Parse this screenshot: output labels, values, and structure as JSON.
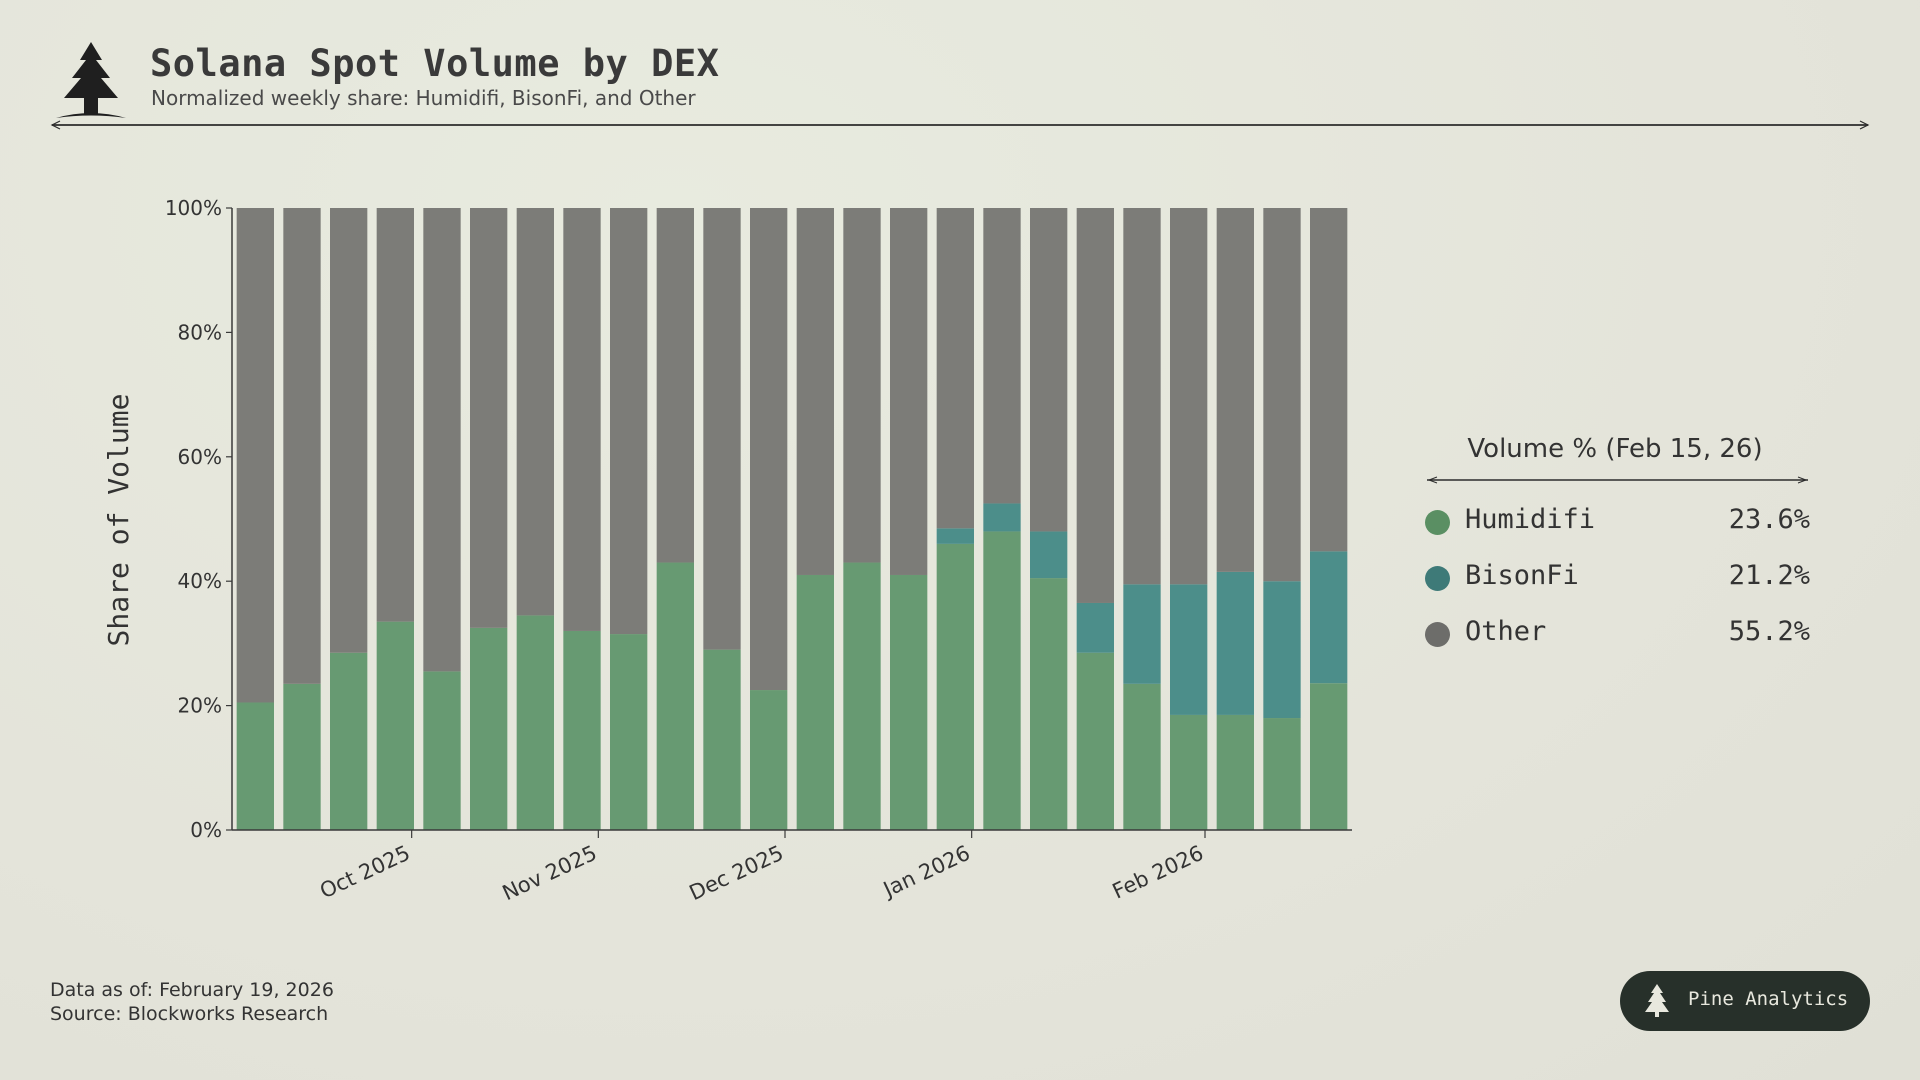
{
  "header": {
    "title": "Solana Spot Volume by DEX",
    "subtitle": "Normalized weekly share: Humidifi, BisonFi, and Other"
  },
  "colors": {
    "humidifi": "#679a72",
    "bisonfi": "#4c8e8a",
    "other": "#7c7c78",
    "humidifi_dot": "#5a8f63",
    "bisonfi_dot": "#3e7a78",
    "other_dot": "#6d6d6a"
  },
  "chart_data": {
    "type": "bar",
    "stacked": true,
    "ylabel": "Share of Volume",
    "xlabel": "",
    "ylim": [
      0,
      100
    ],
    "yticks": [
      "0%",
      "20%",
      "40%",
      "60%",
      "80%",
      "100%"
    ],
    "grid": false,
    "legend_placement": "right",
    "month_labels": [
      {
        "label": "Oct 2025",
        "after_bar": 3
      },
      {
        "label": "Nov 2025",
        "after_bar": 7
      },
      {
        "label": "Dec 2025",
        "after_bar": 11
      },
      {
        "label": "Jan 2026",
        "after_bar": 15
      },
      {
        "label": "Feb 2026",
        "after_bar": 20
      }
    ],
    "series": [
      {
        "name": "Humidifi",
        "values": [
          20.5,
          23.5,
          28.5,
          33.5,
          25.5,
          32.5,
          34.5,
          32,
          31.5,
          43,
          29,
          22.5,
          41,
          43,
          41,
          46,
          48,
          40.5,
          28.5,
          23.5,
          18.5,
          18.5,
          18,
          23.6
        ]
      },
      {
        "name": "BisonFi",
        "values": [
          0,
          0,
          0,
          0,
          0,
          0,
          0,
          0,
          0,
          0,
          0,
          0,
          0,
          0,
          0,
          2.5,
          4.5,
          7.5,
          8,
          16,
          21,
          23,
          22,
          21.2
        ]
      },
      {
        "name": "Other",
        "values": [
          79.5,
          76.5,
          71.5,
          66.5,
          74.5,
          67.5,
          65.5,
          68,
          68.5,
          57,
          71,
          77.5,
          59,
          57,
          59,
          51.5,
          47.5,
          52,
          63.5,
          60.5,
          60.5,
          58.5,
          60,
          55.2
        ]
      }
    ]
  },
  "legend": {
    "title": "Volume % (Feb 15, 26)",
    "items": [
      {
        "name": "Humidifi",
        "value": "23.6%"
      },
      {
        "name": "BisonFi",
        "value": "21.2%"
      },
      {
        "name": "Other",
        "value": "55.2%"
      }
    ]
  },
  "footer": {
    "data_as_of": "Data as of: February 19, 2026",
    "source": "Source: Blockworks Research"
  },
  "badge": {
    "label": "Pine Analytics",
    "icon": "pine-tree-icon"
  }
}
